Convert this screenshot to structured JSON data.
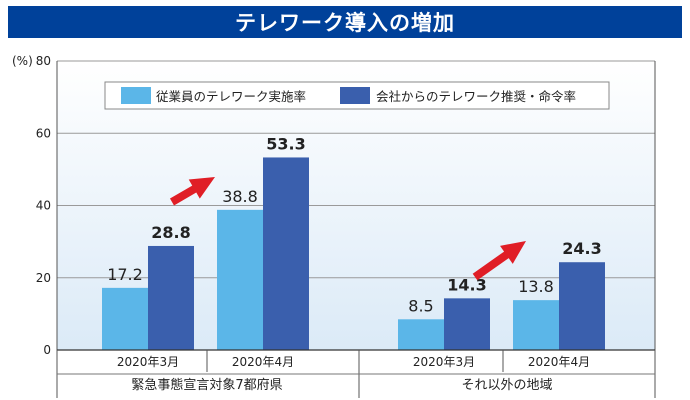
{
  "title": "テレワーク導入の増加",
  "colors": {
    "title_bg": "#00419a",
    "series1": "#5bb6e8",
    "series2": "#3a5fad",
    "arrow": "#e01e26",
    "grid": "#9a9a9a"
  },
  "chart_data": {
    "type": "bar",
    "title": "テレワーク導入の増加",
    "ylabel_unit": "(%)",
    "ylim": [
      0,
      80
    ],
    "yticks": [
      0,
      20,
      40,
      60,
      80
    ],
    "grid": true,
    "legend_position": "top-right",
    "groups": [
      {
        "name": "緊急事態宣言対象7都府県",
        "categories": [
          "2020年3月",
          "2020年4月"
        ]
      },
      {
        "name": "それ以外の地域",
        "categories": [
          "2020年3月",
          "2020年4月"
        ]
      }
    ],
    "series": [
      {
        "name": "従業員のテレワーク実施率",
        "values": [
          17.2,
          38.8,
          8.5,
          13.8
        ]
      },
      {
        "name": "会社からのテレワーク推奨・命令率",
        "values": [
          28.8,
          53.3,
          14.3,
          24.3
        ]
      }
    ],
    "value_labels": [
      [
        "17.2",
        "38.8",
        "8.5",
        "13.8"
      ],
      [
        "28.8",
        "53.3",
        "14.3",
        "24.3"
      ]
    ]
  }
}
